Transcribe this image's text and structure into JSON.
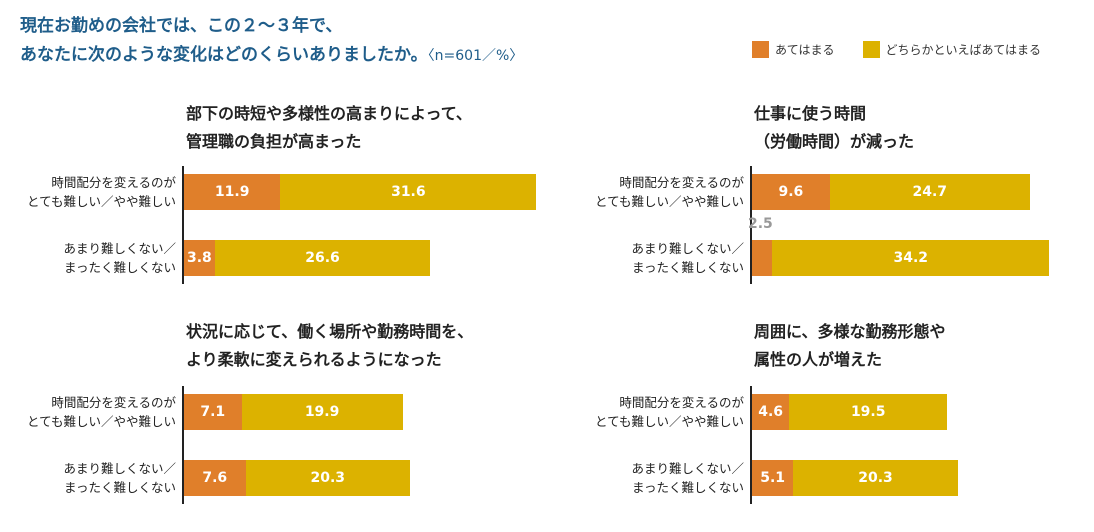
{
  "title": {
    "line1": "現在お勤めの会社では、この２〜３年で、",
    "line2": "あなたに次のような変化はどのくらいありましたか。",
    "note": "〈n=601／%〉"
  },
  "colors": {
    "orange": "#e07f2a",
    "yellow": "#dcb200"
  },
  "chart_data": [
    {
      "type": "bar",
      "title_lines": [
        "部下の時短や多様性の高まりによって、",
        "管理職の負担が高まった"
      ],
      "categories": [
        "時間配分を変えるのが\nとても難しい／やや難しい",
        "あまり難しくない／\nまったく難しくない"
      ],
      "series": [
        {
          "name": "あてはまる",
          "values": [
            11.9,
            3.8
          ]
        },
        {
          "name": "どちらかといえばあてはまる",
          "values": [
            31.6,
            26.6
          ]
        }
      ]
    },
    {
      "type": "bar",
      "title_lines": [
        "仕事に使う時間",
        "（労働時間）が減った"
      ],
      "categories": [
        "時間配分を変えるのが\nとても難しい／やや難しい",
        "あまり難しくない／\nまったく難しくない"
      ],
      "series": [
        {
          "name": "あてはまる",
          "values": [
            9.6,
            2.5
          ]
        },
        {
          "name": "どちらかといえばあてはまる",
          "values": [
            24.7,
            34.2
          ]
        }
      ]
    },
    {
      "type": "bar",
      "title_lines": [
        "状況に応じて、働く場所や勤務時間を、",
        "より柔軟に変えられるようになった"
      ],
      "categories": [
        "時間配分を変えるのが\nとても難しい／やや難しい",
        "あまり難しくない／\nまったく難しくない"
      ],
      "series": [
        {
          "name": "あてはまる",
          "values": [
            7.1,
            7.6
          ]
        },
        {
          "name": "どちらかといえばあてはまる",
          "values": [
            19.9,
            20.3
          ]
        }
      ]
    },
    {
      "type": "bar",
      "title_lines": [
        "周囲に、多様な勤務形態や",
        "属性の人が増えた"
      ],
      "categories": [
        "時間配分を変えるのが\nとても難しい／やや難しい",
        "あまり難しくない／\nまったく難しくない"
      ],
      "series": [
        {
          "name": "あてはまる",
          "values": [
            4.6,
            5.1
          ]
        },
        {
          "name": "どちらかといえばあてはまる",
          "values": [
            19.5,
            20.3
          ]
        }
      ]
    }
  ]
}
